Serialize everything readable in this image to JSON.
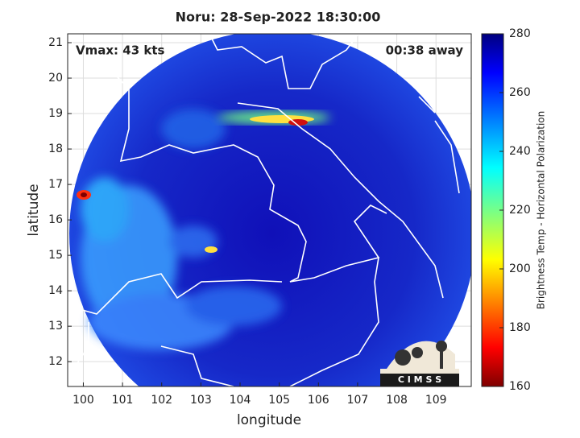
{
  "chart_data": {
    "type": "image",
    "title": "Noru: 28-Sep-2022 18:30:00",
    "annotations": [
      {
        "text": "Vmax: 43 kts"
      },
      {
        "text": "00:38 away"
      }
    ],
    "logo_text": "C I M S S",
    "xlabel": "longitude",
    "ylabel": "latitude",
    "xlim": [
      99.6,
      109.9
    ],
    "xticks": [
      100,
      101,
      102,
      103,
      104,
      105,
      106,
      107,
      108,
      109
    ],
    "ylim": [
      11.3,
      21.25
    ],
    "yticks": [
      12,
      13,
      14,
      15,
      16,
      17,
      18,
      19,
      20,
      21
    ],
    "grid": true,
    "colorbar": {
      "label": "Brightness Temp - Horizontal Polarization",
      "lim": [
        160,
        280
      ],
      "ticks": [
        160,
        180,
        200,
        220,
        240,
        260,
        280
      ]
    }
  }
}
